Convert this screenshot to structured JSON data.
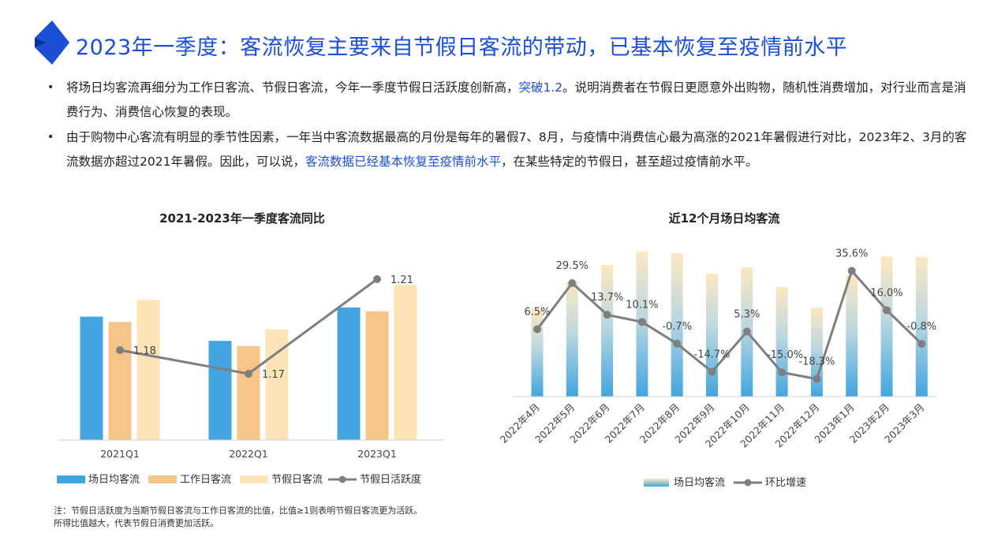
{
  "page": {
    "title": "2023年一季度：客流恢复主要来自节假日客流的带动，已基本恢复至疫情前水平",
    "bullets": [
      {
        "before": "将场日均客流再细分为工作日客流、节假日客流，今年一季度节假日活跃度创新高，",
        "highlight": "突破1.2",
        "after": "。说明消费者在节假日更愿意外出购物，随机性消费增加，对行业而言是消费行为、消费信心恢复的表现。"
      },
      {
        "before": "由于购物中心客流有明显的季节性因素，一年当中客流数据最高的月份是每年的暑假7、8月，与疫情中消费信心最为高涨的2021年暑假进行对比，2023年2、3月的客流数据亦超过2021年暑假。因此，可以说，",
        "highlight": "客流数据已经基本恢复至疫情前水平",
        "after": "，在某些特定的节假日，甚至超过疫情前水平。"
      }
    ],
    "bullet_symbol": "•",
    "footnote": {
      "line1": "注：节假日活跃度为当期节假日客流与工作日客流的比值，比值≥1则表明节假日客流更为活跃。",
      "line2": "所得比值越大，代表节假日消费更加活跃。"
    },
    "colors": {
      "title": "#1a4fd6",
      "highlight": "#1a4fd6",
      "daily": "#42a5e0",
      "workday": "#f5c58a",
      "holiday": "#fde3b5",
      "line": "#7f7f7f",
      "gradient_top": "#fde8c2",
      "gradient_bottom": "#42a5e0"
    }
  },
  "chart_data": [
    {
      "type": "bar",
      "title": "2021-2023年一季度客流同比",
      "categories": [
        "2021Q1",
        "2022Q1",
        "2023Q1"
      ],
      "series": [
        {
          "name": "场日均客流",
          "type": "bar",
          "values": [
            163,
            131,
            175
          ]
        },
        {
          "name": "工作日客流",
          "type": "bar",
          "values": [
            156,
            124,
            170
          ]
        },
        {
          "name": "节假日客流",
          "type": "bar",
          "values": [
            185,
            146,
            205
          ]
        },
        {
          "name": "节假日活跃度",
          "type": "line",
          "axis": "secondary",
          "values": [
            1.18,
            1.17,
            1.21
          ],
          "labels": [
            "1.18",
            "1.17",
            "1.21"
          ]
        }
      ],
      "ylim": [
        0,
        250
      ],
      "y2lim": [
        1.142,
        1.222
      ],
      "grid": false,
      "legend": "bottom"
    },
    {
      "type": "bar",
      "title": "近12个月场日均客流",
      "categories": [
        "2022年4月",
        "2022年5月",
        "2022年6月",
        "2022年7月",
        "2022年8月",
        "2022年9月",
        "2022年10月",
        "2022年11月",
        "2022年12月",
        "2023年1月",
        "2023年2月",
        "2023年3月"
      ],
      "series": [
        {
          "name": "场日均客流",
          "type": "bar",
          "values": [
            112,
            146,
            167,
            184,
            182,
            156,
            164,
            139,
            113,
            154,
            178,
            177
          ]
        },
        {
          "name": "环比增速",
          "type": "line",
          "axis": "secondary",
          "values": [
            6.5,
            29.5,
            13.7,
            10.1,
            -0.7,
            -14.7,
            5.3,
            -15.0,
            -18.3,
            35.6,
            16.0,
            -0.8
          ],
          "labels": [
            "6.5%",
            "29.5%",
            "13.7%",
            "10.1%",
            "-0.7%",
            "-14.7%",
            "5.3%",
            "-15.0%",
            "-18.3%",
            "35.6%",
            "16.0%",
            "-0.8%"
          ]
        }
      ],
      "ylim": [
        0,
        200
      ],
      "y2lim": [
        -27.1,
        51.5
      ],
      "grid": false,
      "legend": "bottom"
    }
  ]
}
